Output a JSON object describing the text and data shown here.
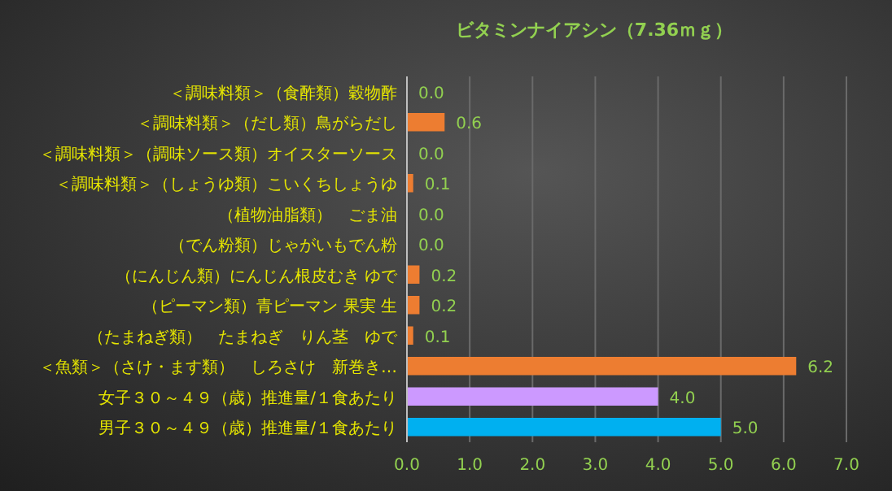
{
  "chart_data": {
    "type": "bar",
    "orientation": "horizontal",
    "title": "ビタミンナイアシン（7.36ｍｇ）",
    "categories": [
      "＜調味料類＞（食酢類）穀物酢",
      "＜調味料類＞（だし類）鳥がらだし",
      "＜調味料類＞（調味ソース類）オイスターソース",
      "＜調味料類＞（しょうゆ類）こいくちしょうゆ",
      "（植物油脂類）　ごま油",
      "（でん粉類）じゃがいもでん粉",
      "（にんじん類）にんじん根皮むき ゆで",
      "（ピーマン類）青ピーマン 果実 生",
      "（たまねぎ類）　たまねぎ　りん茎　ゆで",
      "＜魚類＞（さけ・ます類）　しろさけ　新巻き…",
      "女子３０～４９（歳）推進量/１食あたり",
      "男子３０～４９（歳）推進量/１食あたり"
    ],
    "values": [
      0.0,
      0.6,
      0.0,
      0.1,
      0.0,
      0.0,
      0.2,
      0.2,
      0.1,
      6.2,
      4.0,
      5.0
    ],
    "value_labels": [
      "0.0",
      "0.6",
      "0.0",
      "0.1",
      "0.0",
      "0.0",
      "0.2",
      "0.2",
      "0.1",
      "6.2",
      "4.0",
      "5.0"
    ],
    "colors": [
      "#ed7d31",
      "#ed7d31",
      "#ed7d31",
      "#ed7d31",
      "#ed7d31",
      "#ed7d31",
      "#ed7d31",
      "#ed7d31",
      "#ed7d31",
      "#ed7d31",
      "#cc99ff",
      "#00b0f0"
    ],
    "xlim": [
      0,
      7
    ],
    "xticks": [
      {
        "value": 0,
        "label": "0.0"
      },
      {
        "value": 1,
        "label": "1.0"
      },
      {
        "value": 2,
        "label": "2.0"
      },
      {
        "value": 3,
        "label": "3.0"
      },
      {
        "value": 4,
        "label": "4.0"
      },
      {
        "value": 5,
        "label": "5.0"
      },
      {
        "value": 6,
        "label": "6.0"
      },
      {
        "value": 7,
        "label": "7.0"
      }
    ],
    "grid": "x"
  }
}
